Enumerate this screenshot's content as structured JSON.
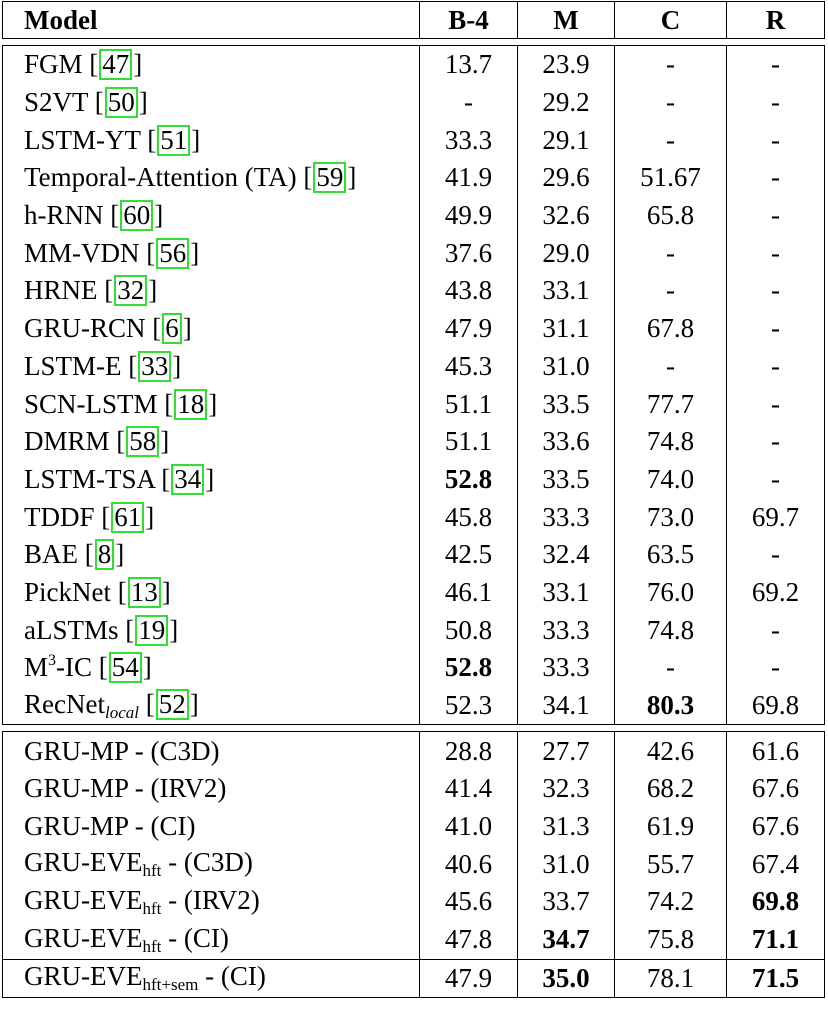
{
  "table": {
    "headers": [
      "Model",
      "B-4",
      "M",
      "C",
      "R"
    ],
    "group1": [
      {
        "name": "FGM",
        "cite": "47",
        "b4": "13.7",
        "m": "23.9",
        "c": "-",
        "r": "-"
      },
      {
        "name": "S2VT",
        "cite": "50",
        "b4": "-",
        "m": "29.2",
        "c": "-",
        "r": "-"
      },
      {
        "name": "LSTM-YT",
        "cite": "51",
        "b4": "33.3",
        "m": "29.1",
        "c": "-",
        "r": "-"
      },
      {
        "name": "Temporal-Attention (TA)",
        "cite": "59",
        "b4": "41.9",
        "m": "29.6",
        "c": "51.67",
        "r": "-"
      },
      {
        "name": "h-RNN",
        "cite": "60",
        "b4": "49.9",
        "m": "32.6",
        "c": "65.8",
        "r": "-"
      },
      {
        "name": "MM-VDN",
        "cite": "56",
        "b4": "37.6",
        "m": "29.0",
        "c": "-",
        "r": "-"
      },
      {
        "name": "HRNE",
        "cite": "32",
        "b4": "43.8",
        "m": "33.1",
        "c": "-",
        "r": "-"
      },
      {
        "name": "GRU-RCN",
        "cite": "6",
        "b4": "47.9",
        "m": "31.1",
        "c": "67.8",
        "r": "-"
      },
      {
        "name": "LSTM-E",
        "cite": "33",
        "b4": "45.3",
        "m": "31.0",
        "c": "-",
        "r": "-"
      },
      {
        "name": "SCN-LSTM",
        "cite": "18",
        "b4": "51.1",
        "m": "33.5",
        "c": "77.7",
        "r": "-"
      },
      {
        "name": "DMRM",
        "cite": "58",
        "b4": "51.1",
        "m": "33.6",
        "c": "74.8",
        "r": "-"
      },
      {
        "name": "LSTM-TSA",
        "cite": "34",
        "b4": "52.8",
        "m": "33.5",
        "c": "74.0",
        "r": "-",
        "bold": [
          "b4"
        ]
      },
      {
        "name": "TDDF",
        "cite": "61",
        "b4": "45.8",
        "m": "33.3",
        "c": "73.0",
        "r": "69.7"
      },
      {
        "name": "BAE",
        "cite": "8",
        "b4": "42.5",
        "m": "32.4",
        "c": "63.5",
        "r": "-"
      },
      {
        "name": "PickNet",
        "cite": "13",
        "b4": "46.1",
        "m": "33.1",
        "c": "76.0",
        "r": "69.2"
      },
      {
        "name": "aLSTMs",
        "cite": "19",
        "b4": "50.8",
        "m": "33.3",
        "c": "74.8",
        "r": "-"
      },
      {
        "name": "M",
        "sup": "3",
        "suffix": "-IC",
        "cite": "54",
        "b4": "52.8",
        "m": "33.3",
        "c": "-",
        "r": "-",
        "bold": [
          "b4"
        ]
      },
      {
        "name": "RecNet",
        "subi": "local",
        "cite": "52",
        "b4": "52.3",
        "m": "34.1",
        "c": "80.3",
        "r": "69.8",
        "bold": [
          "c"
        ]
      }
    ],
    "group2": [
      {
        "name": "GRU-MP",
        "suffix": " - (C3D)",
        "b4": "28.8",
        "m": "27.7",
        "c": "42.6",
        "r": "61.6"
      },
      {
        "name": "GRU-MP",
        "suffix": " - (IRV2)",
        "b4": "41.4",
        "m": "32.3",
        "c": "68.2",
        "r": "67.6"
      },
      {
        "name": "GRU-MP",
        "suffix": " - (CI)",
        "b4": "41.0",
        "m": "31.3",
        "c": "61.9",
        "r": "67.6"
      },
      {
        "name": "GRU-EVE",
        "sub": "hft",
        "suffix": " - (C3D)",
        "b4": "40.6",
        "m": "31.0",
        "c": "55.7",
        "r": "67.4"
      },
      {
        "name": "GRU-EVE",
        "sub": "hft",
        "suffix": " - (IRV2)",
        "b4": "45.6",
        "m": "33.7",
        "c": "74.2",
        "r": "69.8",
        "bold": [
          "r"
        ]
      },
      {
        "name": "GRU-EVE",
        "sub": "hft",
        "suffix": " - (CI)",
        "b4": "47.8",
        "m": "34.7",
        "c": "75.8",
        "r": "71.1",
        "bold": [
          "m",
          "r"
        ]
      }
    ],
    "final": [
      {
        "name": "GRU-EVE",
        "sub": "hft+sem",
        "suffix": " - (CI)",
        "b4": "47.9",
        "m": "35.0",
        "c": "78.1",
        "r": "71.5",
        "bold": [
          "m",
          "r"
        ]
      }
    ]
  }
}
